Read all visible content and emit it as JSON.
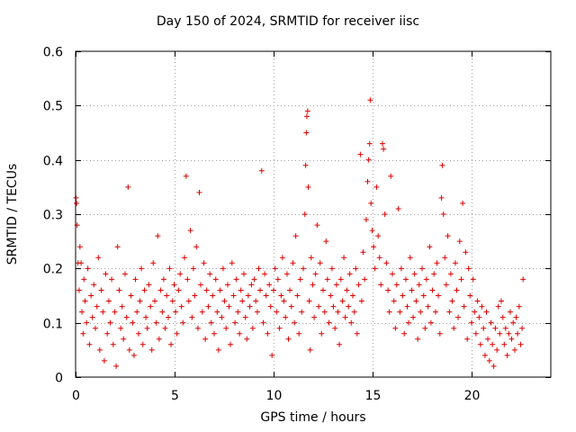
{
  "chart_data": {
    "type": "scatter",
    "title": "Day 150 of 2024, SRMTID for receiver iisc",
    "xlabel": "GPS time / hours",
    "ylabel": "SRMTID / TECUs",
    "xlim": [
      0,
      24
    ],
    "ylim": [
      0,
      0.6
    ],
    "xticks": [
      0,
      5,
      10,
      15,
      20
    ],
    "yticks": [
      0,
      0.1,
      0.2,
      0.3,
      0.4,
      0.5,
      0.6
    ],
    "ytick_labels": [
      "0",
      "0.1",
      "0.2",
      "0.3",
      "0.4",
      "0.5",
      "0.6"
    ],
    "grid": true,
    "marker": "+",
    "color": "#dd0000",
    "series": [
      {
        "name": "SRMTID",
        "points": [
          [
            0.02,
            0.33
          ],
          [
            0.05,
            0.32
          ],
          [
            0.08,
            0.28
          ],
          [
            0.12,
            0.21
          ],
          [
            0.18,
            0.16
          ],
          [
            0.22,
            0.24
          ],
          [
            0.28,
            0.21
          ],
          [
            0.32,
            0.12
          ],
          [
            0.38,
            0.08
          ],
          [
            0.42,
            0.18
          ],
          [
            0.48,
            0.14
          ],
          [
            0.55,
            0.1
          ],
          [
            0.62,
            0.2
          ],
          [
            0.7,
            0.06
          ],
          [
            0.78,
            0.15
          ],
          [
            0.85,
            0.11
          ],
          [
            0.92,
            0.17
          ],
          [
            1.0,
            0.09
          ],
          [
            1.08,
            0.13
          ],
          [
            1.15,
            0.22
          ],
          [
            1.22,
            0.05
          ],
          [
            1.3,
            0.16
          ],
          [
            1.38,
            0.12
          ],
          [
            1.45,
            0.03
          ],
          [
            1.52,
            0.19
          ],
          [
            1.6,
            0.08
          ],
          [
            1.68,
            0.14
          ],
          [
            1.75,
            0.1
          ],
          [
            1.82,
            0.18
          ],
          [
            1.9,
            0.06
          ],
          [
            1.98,
            0.12
          ],
          [
            2.05,
            0.02
          ],
          [
            2.12,
            0.24
          ],
          [
            2.2,
            0.16
          ],
          [
            2.28,
            0.09
          ],
          [
            2.35,
            0.13
          ],
          [
            2.42,
            0.07
          ],
          [
            2.5,
            0.19
          ],
          [
            2.58,
            0.11
          ],
          [
            2.65,
            0.35
          ],
          [
            2.72,
            0.05
          ],
          [
            2.8,
            0.15
          ],
          [
            2.88,
            0.1
          ],
          [
            2.95,
            0.04
          ],
          [
            3.02,
            0.18
          ],
          [
            3.1,
            0.12
          ],
          [
            3.18,
            0.08
          ],
          [
            3.25,
            0.14
          ],
          [
            3.32,
            0.2
          ],
          [
            3.4,
            0.06
          ],
          [
            3.48,
            0.16
          ],
          [
            3.55,
            0.11
          ],
          [
            3.62,
            0.09
          ],
          [
            3.7,
            0.17
          ],
          [
            3.78,
            0.13
          ],
          [
            3.85,
            0.05
          ],
          [
            3.92,
            0.21
          ],
          [
            4.0,
            0.14
          ],
          [
            4.08,
            0.1
          ],
          [
            4.15,
            0.26
          ],
          [
            4.22,
            0.07
          ],
          [
            4.3,
            0.16
          ],
          [
            4.38,
            0.12
          ],
          [
            4.45,
            0.18
          ],
          [
            4.52,
            0.09
          ],
          [
            4.6,
            0.15
          ],
          [
            4.68,
            0.11
          ],
          [
            4.75,
            0.2
          ],
          [
            4.82,
            0.06
          ],
          [
            4.9,
            0.14
          ],
          [
            4.98,
            0.17
          ],
          [
            5.05,
            0.12
          ],
          [
            5.12,
            0.08
          ],
          [
            5.2,
            0.16
          ],
          [
            5.28,
            0.19
          ],
          [
            5.35,
            0.13
          ],
          [
            5.42,
            0.1
          ],
          [
            5.5,
            0.22
          ],
          [
            5.58,
            0.37
          ],
          [
            5.65,
            0.18
          ],
          [
            5.72,
            0.14
          ],
          [
            5.8,
            0.27
          ],
          [
            5.88,
            0.11
          ],
          [
            5.95,
            0.2
          ],
          [
            6.02,
            0.15
          ],
          [
            6.1,
            0.24
          ],
          [
            6.18,
            0.09
          ],
          [
            6.25,
            0.34
          ],
          [
            6.32,
            0.17
          ],
          [
            6.4,
            0.12
          ],
          [
            6.48,
            0.21
          ],
          [
            6.55,
            0.07
          ],
          [
            6.62,
            0.16
          ],
          [
            6.7,
            0.13
          ],
          [
            6.78,
            0.19
          ],
          [
            6.85,
            0.1
          ],
          [
            6.92,
            0.15
          ],
          [
            7.0,
            0.08
          ],
          [
            7.08,
            0.18
          ],
          [
            7.15,
            0.12
          ],
          [
            7.22,
            0.05
          ],
          [
            7.3,
            0.16
          ],
          [
            7.38,
            0.11
          ],
          [
            7.45,
            0.2
          ],
          [
            7.52,
            0.14
          ],
          [
            7.6,
            0.09
          ],
          [
            7.68,
            0.17
          ],
          [
            7.75,
            0.13
          ],
          [
            7.82,
            0.06
          ],
          [
            7.9,
            0.21
          ],
          [
            7.98,
            0.15
          ],
          [
            8.05,
            0.1
          ],
          [
            8.12,
            0.18
          ],
          [
            8.2,
            0.12
          ],
          [
            8.28,
            0.08
          ],
          [
            8.35,
            0.16
          ],
          [
            8.42,
            0.14
          ],
          [
            8.5,
            0.19
          ],
          [
            8.58,
            0.11
          ],
          [
            8.65,
            0.07
          ],
          [
            8.72,
            0.15
          ],
          [
            8.8,
            0.13
          ],
          [
            8.88,
            0.17
          ],
          [
            8.95,
            0.09
          ],
          [
            9.02,
            0.18
          ],
          [
            9.1,
            0.14
          ],
          [
            9.18,
            0.12
          ],
          [
            9.25,
            0.2
          ],
          [
            9.32,
            0.16
          ],
          [
            9.4,
            0.38
          ],
          [
            9.48,
            0.1
          ],
          [
            9.55,
            0.19
          ],
          [
            9.62,
            0.15
          ],
          [
            9.7,
            0.08
          ],
          [
            9.78,
            0.17
          ],
          [
            9.85,
            0.13
          ],
          [
            9.92,
            0.04
          ],
          [
            10.0,
            0.16
          ],
          [
            10.08,
            0.2
          ],
          [
            10.15,
            0.12
          ],
          [
            10.22,
            0.18
          ],
          [
            10.3,
            0.09
          ],
          [
            10.38,
            0.15
          ],
          [
            10.45,
            0.22
          ],
          [
            10.52,
            0.14
          ],
          [
            10.6,
            0.11
          ],
          [
            10.68,
            0.19
          ],
          [
            10.75,
            0.07
          ],
          [
            10.82,
            0.16
          ],
          [
            10.9,
            0.13
          ],
          [
            10.98,
            0.21
          ],
          [
            11.05,
            0.1
          ],
          [
            11.12,
            0.26
          ],
          [
            11.2,
            0.15
          ],
          [
            11.28,
            0.08
          ],
          [
            11.35,
            0.18
          ],
          [
            11.42,
            0.12
          ],
          [
            11.5,
            0.2
          ],
          [
            11.58,
            0.3
          ],
          [
            11.62,
            0.39
          ],
          [
            11.65,
            0.45
          ],
          [
            11.68,
            0.48
          ],
          [
            11.72,
            0.49
          ],
          [
            11.75,
            0.35
          ],
          [
            11.8,
            0.14
          ],
          [
            11.85,
            0.05
          ],
          [
            11.9,
            0.22
          ],
          [
            11.98,
            0.17
          ],
          [
            12.05,
            0.11
          ],
          [
            12.12,
            0.19
          ],
          [
            12.2,
            0.28
          ],
          [
            12.28,
            0.13
          ],
          [
            12.35,
            0.21
          ],
          [
            12.42,
            0.08
          ],
          [
            12.5,
            0.16
          ],
          [
            12.58,
            0.12
          ],
          [
            12.65,
            0.25
          ],
          [
            12.72,
            0.18
          ],
          [
            12.8,
            0.1
          ],
          [
            12.88,
            0.15
          ],
          [
            12.95,
            0.2
          ],
          [
            13.02,
            0.13
          ],
          [
            13.1,
            0.09
          ],
          [
            13.18,
            0.17
          ],
          [
            13.25,
            0.12
          ],
          [
            13.32,
            0.06
          ],
          [
            13.4,
            0.18
          ],
          [
            13.48,
            0.14
          ],
          [
            13.55,
            0.22
          ],
          [
            13.62,
            0.11
          ],
          [
            13.7,
            0.16
          ],
          [
            13.78,
            0.13
          ],
          [
            13.85,
            0.19
          ],
          [
            13.92,
            0.1
          ],
          [
            14.0,
            0.15
          ],
          [
            14.08,
            0.12
          ],
          [
            14.15,
            0.2
          ],
          [
            14.22,
            0.08
          ],
          [
            14.3,
            0.17
          ],
          [
            14.38,
            0.41
          ],
          [
            14.45,
            0.14
          ],
          [
            14.52,
            0.23
          ],
          [
            14.6,
            0.18
          ],
          [
            14.68,
            0.29
          ],
          [
            14.75,
            0.36
          ],
          [
            14.8,
            0.4
          ],
          [
            14.85,
            0.43
          ],
          [
            14.88,
            0.51
          ],
          [
            14.92,
            0.32
          ],
          [
            14.98,
            0.27
          ],
          [
            15.05,
            0.24
          ],
          [
            15.12,
            0.2
          ],
          [
            15.2,
            0.35
          ],
          [
            15.28,
            0.26
          ],
          [
            15.35,
            0.22
          ],
          [
            15.42,
            0.17
          ],
          [
            15.5,
            0.43
          ],
          [
            15.55,
            0.42
          ],
          [
            15.62,
            0.3
          ],
          [
            15.7,
            0.21
          ],
          [
            15.78,
            0.16
          ],
          [
            15.85,
            0.12
          ],
          [
            15.92,
            0.37
          ],
          [
            16.0,
            0.19
          ],
          [
            16.08,
            0.14
          ],
          [
            16.15,
            0.09
          ],
          [
            16.22,
            0.17
          ],
          [
            16.3,
            0.31
          ],
          [
            16.38,
            0.12
          ],
          [
            16.45,
            0.2
          ],
          [
            16.52,
            0.15
          ],
          [
            16.6,
            0.08
          ],
          [
            16.68,
            0.18
          ],
          [
            16.75,
            0.13
          ],
          [
            16.82,
            0.1
          ],
          [
            16.9,
            0.22
          ],
          [
            16.98,
            0.16
          ],
          [
            17.05,
            0.11
          ],
          [
            17.12,
            0.19
          ],
          [
            17.2,
            0.14
          ],
          [
            17.28,
            0.07
          ],
          [
            17.35,
            0.17
          ],
          [
            17.42,
            0.12
          ],
          [
            17.5,
            0.2
          ],
          [
            17.58,
            0.15
          ],
          [
            17.65,
            0.09
          ],
          [
            17.72,
            0.18
          ],
          [
            17.8,
            0.13
          ],
          [
            17.88,
            0.24
          ],
          [
            17.95,
            0.1
          ],
          [
            18.02,
            0.16
          ],
          [
            18.1,
            0.19
          ],
          [
            18.18,
            0.12
          ],
          [
            18.25,
            0.21
          ],
          [
            18.32,
            0.15
          ],
          [
            18.4,
            0.08
          ],
          [
            18.48,
            0.33
          ],
          [
            18.52,
            0.39
          ],
          [
            18.58,
            0.3
          ],
          [
            18.65,
            0.22
          ],
          [
            18.72,
            0.17
          ],
          [
            18.8,
            0.26
          ],
          [
            18.88,
            0.12
          ],
          [
            18.95,
            0.19
          ],
          [
            19.02,
            0.14
          ],
          [
            19.1,
            0.09
          ],
          [
            19.18,
            0.21
          ],
          [
            19.25,
            0.16
          ],
          [
            19.32,
            0.11
          ],
          [
            19.4,
            0.25
          ],
          [
            19.48,
            0.18
          ],
          [
            19.55,
            0.32
          ],
          [
            19.62,
            0.13
          ],
          [
            19.7,
            0.23
          ],
          [
            19.78,
            0.07
          ],
          [
            19.85,
            0.2
          ],
          [
            19.92,
            0.15
          ],
          [
            20.0,
            0.1
          ],
          [
            20.08,
            0.18
          ],
          [
            20.15,
            0.12
          ],
          [
            20.22,
            0.08
          ],
          [
            20.3,
            0.14
          ],
          [
            20.38,
            0.11
          ],
          [
            20.45,
            0.06
          ],
          [
            20.52,
            0.13
          ],
          [
            20.6,
            0.09
          ],
          [
            20.68,
            0.04
          ],
          [
            20.75,
            0.12
          ],
          [
            20.82,
            0.07
          ],
          [
            20.9,
            0.03
          ],
          [
            20.98,
            0.1
          ],
          [
            21.05,
            0.06
          ],
          [
            21.12,
            0.02
          ],
          [
            21.2,
            0.09
          ],
          [
            21.28,
            0.05
          ],
          [
            21.35,
            0.13
          ],
          [
            21.42,
            0.08
          ],
          [
            21.5,
            0.14
          ],
          [
            21.58,
            0.11
          ],
          [
            21.65,
            0.06
          ],
          [
            21.72,
            0.09
          ],
          [
            21.8,
            0.04
          ],
          [
            21.88,
            0.08
          ],
          [
            21.95,
            0.12
          ],
          [
            22.02,
            0.07
          ],
          [
            22.1,
            0.1
          ],
          [
            22.18,
            0.05
          ],
          [
            22.25,
            0.11
          ],
          [
            22.32,
            0.08
          ],
          [
            22.4,
            0.13
          ],
          [
            22.48,
            0.06
          ],
          [
            22.55,
            0.09
          ],
          [
            22.6,
            0.18
          ]
        ]
      }
    ]
  }
}
